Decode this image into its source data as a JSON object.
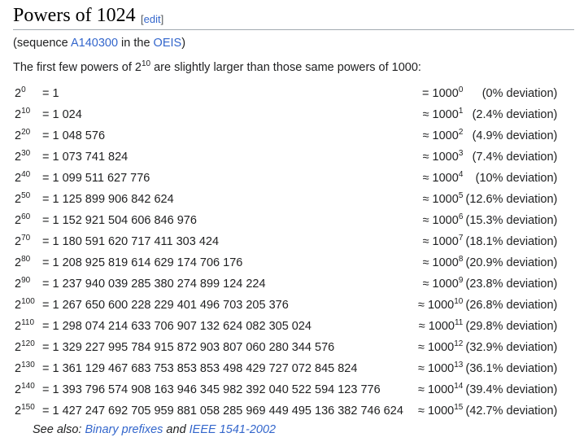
{
  "section": {
    "title": "Powers of 1024",
    "edit_open": "[",
    "edit_label": "edit",
    "edit_close": "]"
  },
  "intro": {
    "paren_open": "(sequence ",
    "seq_link": "A140300",
    "in_the": " in the ",
    "oeis_link": "OEIS",
    "paren_close": ")",
    "sentence_before": "The first few powers of 2",
    "sentence_sup": "10",
    "sentence_after": " are slightly larger than those same powers of 1000:"
  },
  "rows": [
    {
      "exp": "0",
      "value": "= 1",
      "approx": "= 1000",
      "approx_exp": "0",
      "deviation": "(0% deviation)"
    },
    {
      "exp": "10",
      "value": "= 1 024",
      "approx": "≈ 1000",
      "approx_exp": "1",
      "deviation": "(2.4% deviation)"
    },
    {
      "exp": "20",
      "value": "= 1 048 576",
      "approx": "≈ 1000",
      "approx_exp": "2",
      "deviation": "(4.9% deviation)"
    },
    {
      "exp": "30",
      "value": "= 1 073 741 824",
      "approx": "≈ 1000",
      "approx_exp": "3",
      "deviation": "(7.4% deviation)"
    },
    {
      "exp": "40",
      "value": "= 1 099 511 627 776",
      "approx": "≈ 1000",
      "approx_exp": "4",
      "deviation": "(10% deviation)"
    },
    {
      "exp": "50",
      "value": "= 1 125 899 906 842 624",
      "approx": "≈ 1000",
      "approx_exp": "5",
      "deviation": "(12.6% deviation)"
    },
    {
      "exp": "60",
      "value": "= 1 152 921 504 606 846 976",
      "approx": "≈ 1000",
      "approx_exp": "6",
      "deviation": "(15.3% deviation)"
    },
    {
      "exp": "70",
      "value": "= 1 180 591 620 717 411 303 424",
      "approx": "≈ 1000",
      "approx_exp": "7",
      "deviation": "(18.1% deviation)"
    },
    {
      "exp": "80",
      "value": "= 1 208 925 819 614 629 174 706 176",
      "approx": "≈ 1000",
      "approx_exp": "8",
      "deviation": "(20.9% deviation)"
    },
    {
      "exp": "90",
      "value": "= 1 237 940 039 285 380 274 899 124 224",
      "approx": "≈ 1000",
      "approx_exp": "9",
      "deviation": "(23.8% deviation)"
    },
    {
      "exp": "100",
      "value": "= 1 267 650 600 228 229 401 496 703 205 376",
      "approx": "≈ 1000",
      "approx_exp": "10",
      "deviation": "(26.8% deviation)"
    },
    {
      "exp": "110",
      "value": "= 1 298 074 214 633 706 907 132 624 082 305 024",
      "approx": "≈ 1000",
      "approx_exp": "11",
      "deviation": "(29.8% deviation)"
    },
    {
      "exp": "120",
      "value": "= 1 329 227 995 784 915 872 903 807 060 280 344 576",
      "approx": "≈ 1000",
      "approx_exp": "12",
      "deviation": "(32.9% deviation)"
    },
    {
      "exp": "130",
      "value": "= 1 361 129 467 683 753 853 853 498 429 727 072 845 824",
      "approx": "≈ 1000",
      "approx_exp": "13",
      "deviation": "(36.1% deviation)"
    },
    {
      "exp": "140",
      "value": "= 1 393 796 574 908 163 946 345 982 392 040 522 594 123 776",
      "approx": "≈ 1000",
      "approx_exp": "14",
      "deviation": "(39.4% deviation)"
    },
    {
      "exp": "150",
      "value": "= 1 427 247 692 705 959 881 058 285 969 449 495 136 382 746 624",
      "approx": "≈ 1000",
      "approx_exp": "15",
      "deviation": "(42.7% deviation)"
    }
  ],
  "row_base": "2",
  "see_also": {
    "prefix": "See also: ",
    "link1": "Binary prefixes",
    "and": " and ",
    "link2": "IEEE 1541-2002"
  }
}
